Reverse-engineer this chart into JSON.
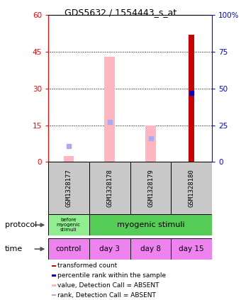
{
  "title": "GDS5632 / 1554443_s_at",
  "samples": [
    "GSM1328177",
    "GSM1328178",
    "GSM1328179",
    "GSM1328180"
  ],
  "bar_values_red": [
    null,
    null,
    null,
    52
  ],
  "bar_values_pink": [
    2.5,
    43,
    15,
    null
  ],
  "rank_blue": [
    null,
    null,
    null,
    47
  ],
  "rank_lightblue": [
    11,
    27,
    16,
    null
  ],
  "ylim_left": [
    0,
    60
  ],
  "ylim_right": [
    0,
    100
  ],
  "yticks_left": [
    0,
    15,
    30,
    45,
    60
  ],
  "yticks_right": [
    0,
    25,
    50,
    75,
    100
  ],
  "ytick_labels_left": [
    "0",
    "15",
    "30",
    "45",
    "60"
  ],
  "ytick_labels_right": [
    "0",
    "25",
    "50",
    "75",
    "100%"
  ],
  "time_labels": [
    "control",
    "day 3",
    "day 8",
    "day 15"
  ],
  "time_color": "#EE82EE",
  "gray_color": "#C8C8C8",
  "red_bar_color": "#CC0000",
  "pink_bar_color": "#FFB6C1",
  "blue_dot_color": "#0000CC",
  "lightblue_dot_color": "#AAAAEE",
  "green_light": "#90EE90",
  "green_dark": "#55CC55",
  "legend_items": [
    [
      "transformed count",
      "#CC0000"
    ],
    [
      "percentile rank within the sample",
      "#0000CC"
    ],
    [
      "value, Detection Call = ABSENT",
      "#FFB6C1"
    ],
    [
      "rank, Detection Call = ABSENT",
      "#AAAAEE"
    ]
  ]
}
